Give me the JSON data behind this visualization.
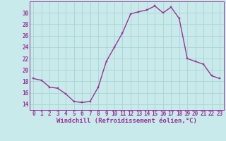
{
  "x": [
    0,
    1,
    2,
    3,
    4,
    5,
    6,
    7,
    8,
    9,
    10,
    11,
    12,
    13,
    14,
    15,
    16,
    17,
    18,
    19,
    20,
    21,
    22,
    23
  ],
  "y": [
    18.5,
    18.2,
    17.0,
    16.8,
    15.8,
    14.5,
    14.3,
    14.5,
    17.0,
    21.5,
    24.0,
    26.5,
    29.8,
    30.2,
    30.5,
    31.2,
    30.0,
    31.0,
    29.0,
    22.0,
    21.5,
    21.0,
    19.0,
    18.5
  ],
  "line_color": "#993399",
  "marker": "s",
  "markersize": 1.8,
  "linewidth": 1.0,
  "ylim": [
    13,
    32
  ],
  "yticks": [
    14,
    16,
    18,
    20,
    22,
    24,
    26,
    28,
    30
  ],
  "xlim": [
    -0.5,
    23.5
  ],
  "xlabel": "Windchill (Refroidissement éolien,°C)",
  "xlabel_fontsize": 6.5,
  "tick_fontsize": 5.5,
  "bg_color": "#c8eaea",
  "grid_color": "#aad4d4",
  "title": ""
}
